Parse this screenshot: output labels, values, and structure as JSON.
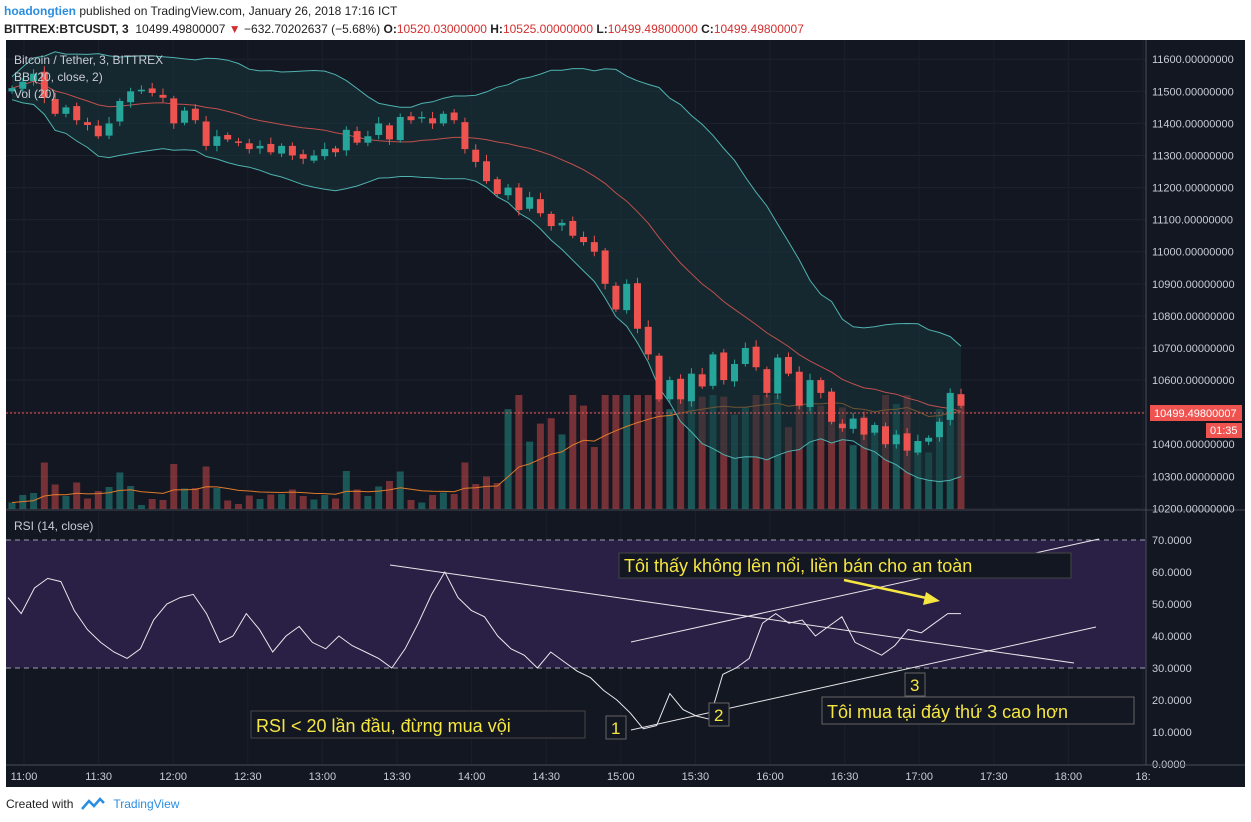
{
  "header": {
    "author": "hoadongtien",
    "published_text": "published on TradingView.com, January 26, 2018 17:16 ICT",
    "symbol": "BITTREX:BTCUSDT, 3",
    "last": "10499.49800007",
    "change": "−632.70202637 (−5.68%)",
    "o_label": "O:",
    "o": "10520.03000000",
    "h_label": "H:",
    "h": "10525.00000000",
    "l_label": "L:",
    "l": "10499.49800000",
    "c_label": "C:",
    "c": "10499.49800007"
  },
  "legend": {
    "title": "Bitcoin / Tether, 3, BITTREX",
    "bb": "BB (20, close, 2)",
    "vol": "Vol (20)",
    "rsi": "RSI (14, close)"
  },
  "price_marker": {
    "label": "10499.49800007",
    "timer": "01:35"
  },
  "annotations": {
    "sell_note": "Tôi thấy không lên nổi, liền bán cho an toàn",
    "rsi_note": "RSI < 20 lần đầu, đừng mua vội",
    "buy_note": "Tôi mua tại đáy thứ 3 cao hơn",
    "label1": "1",
    "label2": "2",
    "label3": "3"
  },
  "footer": {
    "created_with": "Created with",
    "brand": "TradingView"
  },
  "colors": {
    "up": "#26a69a",
    "down": "#ef5350",
    "bg": "#131722",
    "rsi_band": "#2a1f45",
    "annotation": "#f5e642",
    "bb_band": "#4fb3b0",
    "bb_basis": "#c0504d",
    "vol_ma": "#e07b2a"
  },
  "chart_data": [
    {
      "type": "candlestick",
      "title": "Bitcoin / Tether, 3, BITTREX",
      "y_ticks": [
        "11600.00000000",
        "11500.00000000",
        "11400.00000000",
        "11300.00000000",
        "11200.00000000",
        "11100.00000000",
        "11000.00000000",
        "10900.00000000",
        "10800.00000000",
        "10700.00000000",
        "10600.00000000",
        "10500.00000000",
        "10400.00000000",
        "10300.00000000",
        "10200.00000000"
      ],
      "ylim": [
        10195,
        11660
      ],
      "x_ticks": [
        "11:00",
        "11:30",
        "12:00",
        "12:30",
        "13:00",
        "13:30",
        "14:00",
        "14:30",
        "15:00",
        "15:30",
        "16:00",
        "16:30",
        "17:00",
        "17:30",
        "18:00",
        "18:"
      ],
      "last_price": 10499.498,
      "closes": [
        11510,
        11530,
        11555,
        11480,
        11430,
        11450,
        11410,
        11395,
        11360,
        11400,
        11470,
        11500,
        11505,
        11495,
        11480,
        11400,
        11440,
        11410,
        11330,
        11360,
        11350,
        11340,
        11320,
        11330,
        11310,
        11330,
        11300,
        11290,
        11300,
        11320,
        11310,
        11380,
        11340,
        11360,
        11400,
        11350,
        11420,
        11410,
        11420,
        11400,
        11430,
        11410,
        11320,
        11280,
        11220,
        11180,
        11200,
        11130,
        11170,
        11120,
        11080,
        11090,
        11050,
        11030,
        11000,
        10900,
        10820,
        10900,
        10760,
        10680,
        10540,
        10600,
        10540,
        10620,
        10580,
        10680,
        10600,
        10650,
        10700,
        10640,
        10560,
        10670,
        10620,
        10520,
        10600,
        10560,
        10470,
        10450,
        10480,
        10430,
        10460,
        10400,
        10430,
        10380,
        10410,
        10420,
        10470,
        10560,
        10520
      ]
    },
    {
      "type": "line",
      "title": "RSI (14, close)",
      "y_ticks": [
        "70.0000",
        "60.0000",
        "50.0000",
        "40.0000",
        "30.0000",
        "20.0000",
        "10.0000",
        "0.0000"
      ],
      "ylim": [
        0,
        75
      ],
      "band": [
        30,
        70
      ],
      "values": [
        52,
        47,
        55,
        58,
        57,
        48,
        42,
        38,
        35,
        33,
        36,
        45,
        50,
        52,
        53,
        47,
        38,
        40,
        47,
        42,
        35,
        40,
        43,
        38,
        36,
        40,
        37,
        35,
        33,
        30,
        36,
        44,
        53,
        60,
        52,
        48,
        46,
        40,
        36,
        34,
        30,
        35,
        32,
        29,
        27,
        23,
        20,
        16,
        11,
        12,
        22,
        17,
        15,
        14,
        28,
        30,
        33,
        44,
        47,
        44,
        45,
        40,
        43,
        46,
        38,
        36,
        34,
        37,
        42,
        41,
        44,
        47,
        47
      ],
      "trendlines": [
        "descending",
        "upper ascending",
        "lower ascending"
      ]
    }
  ]
}
